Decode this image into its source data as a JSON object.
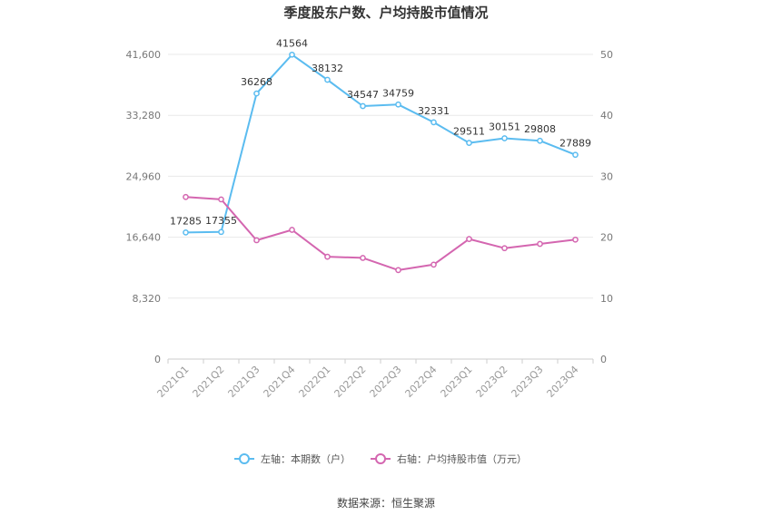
{
  "chart_data": {
    "type": "line",
    "title": "季度股东户数、户均持股市值情况",
    "categories": [
      "2021Q1",
      "2021Q2",
      "2021Q3",
      "2021Q4",
      "2022Q1",
      "2022Q2",
      "2022Q3",
      "2022Q4",
      "2023Q1",
      "2023Q2",
      "2023Q3",
      "2023Q4"
    ],
    "left_axis": {
      "ticks": [
        "0",
        "8,320",
        "16,640",
        "24,960",
        "33,280",
        "41,600"
      ],
      "ylim": [
        0,
        41600
      ]
    },
    "right_axis": {
      "ticks": [
        "0",
        "10",
        "20",
        "30",
        "40",
        "50"
      ],
      "ylim": [
        0,
        50
      ]
    },
    "grid": true,
    "legend_position": "bottom",
    "series": [
      {
        "name": "左轴：本期数（户）",
        "axis": "left",
        "color": "#5bbcf0",
        "values": [
          17285,
          17355,
          36268,
          41564,
          38132,
          34547,
          34759,
          32331,
          29511,
          30151,
          29808,
          27889
        ],
        "labels": [
          "17285",
          "17355",
          "36268",
          "41564",
          "38132",
          "34547",
          "34759",
          "32331",
          "29511",
          "30151",
          "29808",
          "27889"
        ]
      },
      {
        "name": "右轴：户均持股市值（万元）",
        "axis": "right",
        "color": "#d466b0",
        "values": [
          26.6,
          26.2,
          19.5,
          21.2,
          16.8,
          16.6,
          14.6,
          15.5,
          19.7,
          18.2,
          18.9,
          19.6
        ]
      }
    ],
    "source": "数据来源：恒生聚源"
  }
}
